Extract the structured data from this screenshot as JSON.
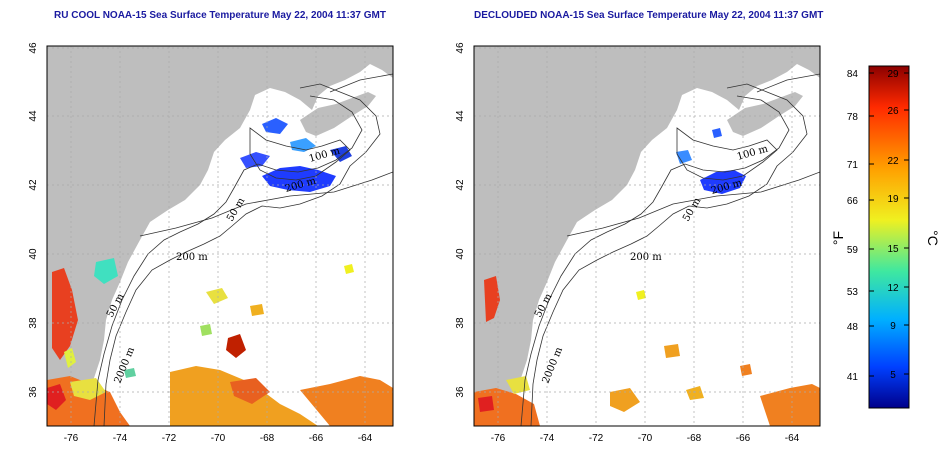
{
  "titles": {
    "left": "RU COOL NOAA-15 Sea Surface Temperature May 22, 2004 11:37 GMT",
    "right": "DECLOUDED NOAA-15 Sea Surface Temperature May 22, 2004 11:37 GMT"
  },
  "axes": {
    "lon_ticks": [
      "-76",
      "-74",
      "-72",
      "-70",
      "-68",
      "-66",
      "-64"
    ],
    "lat_ticks": [
      "46",
      "44",
      "42",
      "40",
      "38",
      "36"
    ],
    "lon_range": [
      -77.2,
      -63.0
    ],
    "lat_range": [
      35.0,
      46.1
    ]
  },
  "contours": {
    "label_100": "100 m",
    "label_50": "50 m",
    "label_200": "200 m",
    "label_2000": "2000 m"
  },
  "colorbar": {
    "fahrenheit_unit": "°F",
    "celsius_unit": "°C",
    "fahrenheit_ticks": [
      "84",
      "78",
      "71",
      "66",
      "59",
      "53",
      "48",
      "41"
    ],
    "celsius_ticks": [
      "29",
      "26",
      "22",
      "19",
      "15",
      "12",
      "9",
      "5"
    ],
    "colors": [
      "#8b0000",
      "#ff2a00",
      "#ffa000",
      "#f0f020",
      "#3fe8a0",
      "#00b0ff",
      "#0040ff",
      "#00008b"
    ]
  },
  "colors": {
    "land": "#bebebe",
    "title": "#1a1aa0"
  }
}
